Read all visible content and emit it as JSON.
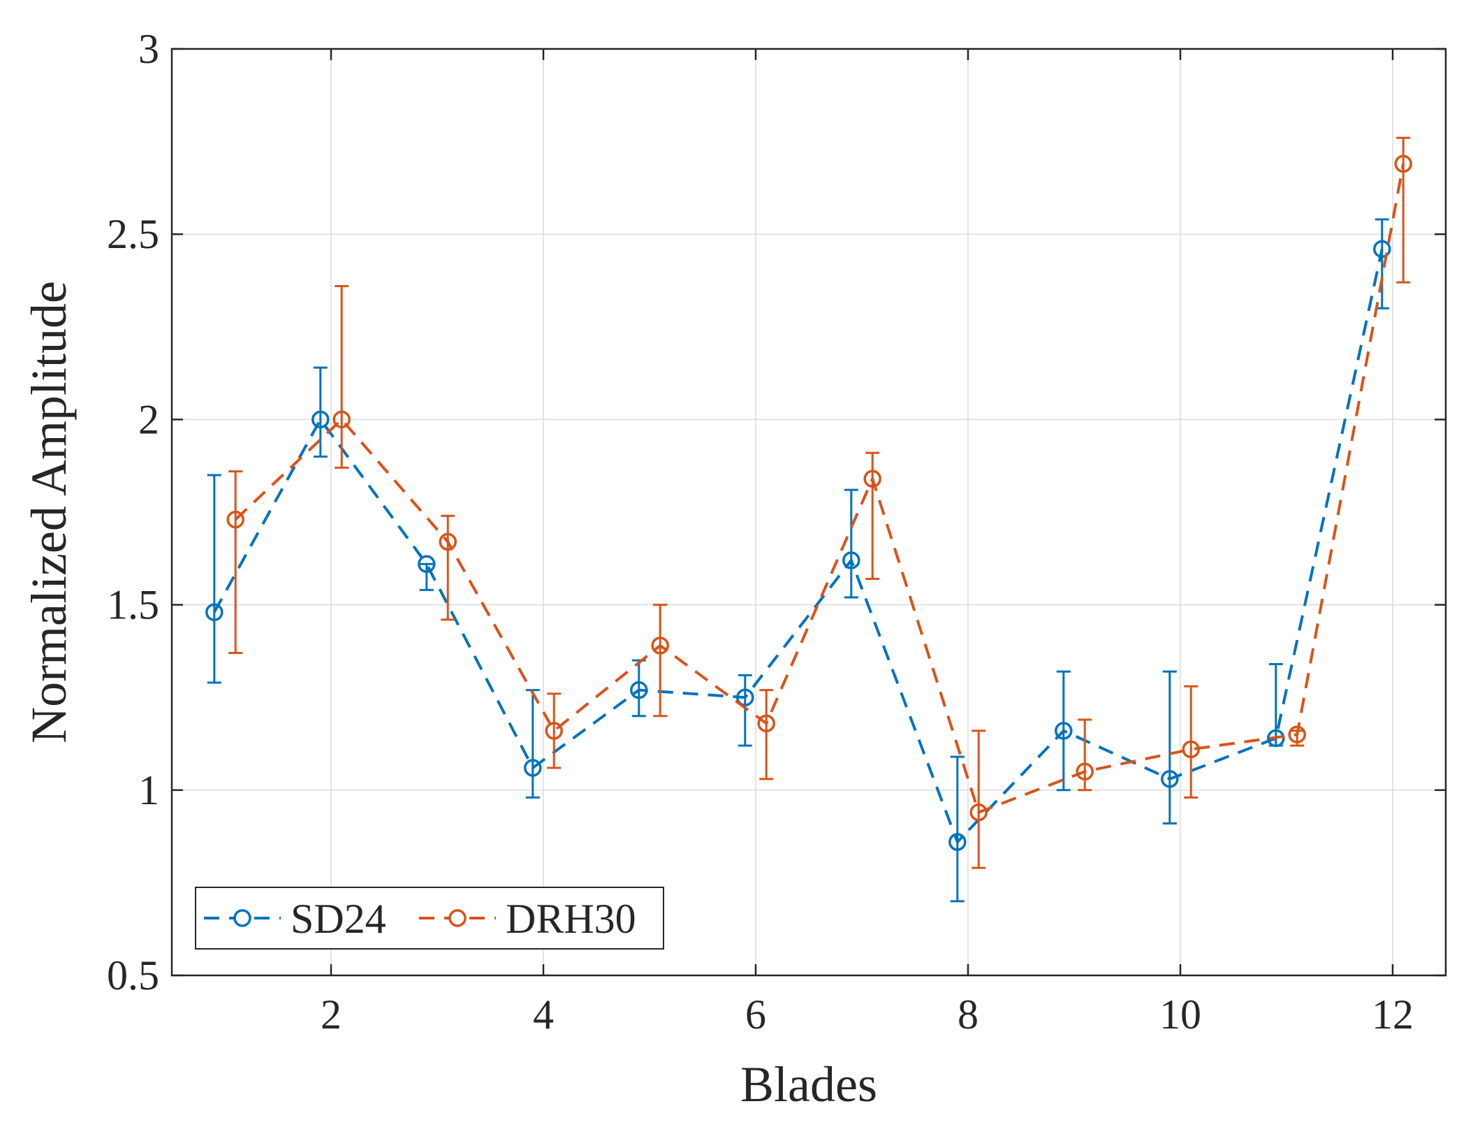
{
  "chart_data": {
    "type": "line",
    "title": "",
    "xlabel": "Blades",
    "ylabel": "Normalized Amplitude",
    "xlim": [
      0.5,
      12.5
    ],
    "ylim": [
      0.5,
      3
    ],
    "xticks": [
      2,
      4,
      6,
      8,
      10,
      12
    ],
    "xtick_labels": [
      "2",
      "4",
      "6",
      "8",
      "10",
      "12"
    ],
    "yticks": [
      0.5,
      1,
      1.5,
      2,
      2.5,
      3
    ],
    "ytick_labels": [
      "0.5",
      "1",
      "1.5",
      "2",
      "2.5",
      "3"
    ],
    "grid": true,
    "legend_position": "bottom-left",
    "series": [
      {
        "name": "SD24",
        "color": "#0072BD",
        "x": [
          0.9,
          1.9,
          2.9,
          3.9,
          4.9,
          5.9,
          6.9,
          7.9,
          8.9,
          9.9,
          10.9,
          11.9
        ],
        "y": [
          1.48,
          2.0,
          1.61,
          1.06,
          1.27,
          1.25,
          1.62,
          0.86,
          1.16,
          1.03,
          1.14,
          2.46
        ],
        "err_low": [
          1.29,
          1.9,
          1.54,
          0.98,
          1.2,
          1.12,
          1.52,
          0.7,
          1.0,
          0.91,
          1.12,
          2.3
        ],
        "err_high": [
          1.85,
          2.14,
          1.61,
          1.27,
          1.35,
          1.31,
          1.81,
          1.09,
          1.32,
          1.32,
          1.34,
          2.54
        ]
      },
      {
        "name": "DRH30",
        "color": "#D95319",
        "x": [
          1.1,
          2.1,
          3.1,
          4.1,
          5.1,
          6.1,
          7.1,
          8.1,
          9.1,
          10.1,
          11.1,
          12.1
        ],
        "y": [
          1.73,
          2.0,
          1.67,
          1.16,
          1.39,
          1.18,
          1.84,
          0.94,
          1.05,
          1.11,
          1.15,
          2.69
        ],
        "err_low": [
          1.37,
          1.87,
          1.46,
          1.06,
          1.2,
          1.03,
          1.57,
          0.79,
          1.0,
          0.98,
          1.12,
          2.37
        ],
        "err_high": [
          1.86,
          2.36,
          1.74,
          1.26,
          1.5,
          1.27,
          1.91,
          1.16,
          1.19,
          1.28,
          1.16,
          2.76
        ]
      }
    ]
  }
}
